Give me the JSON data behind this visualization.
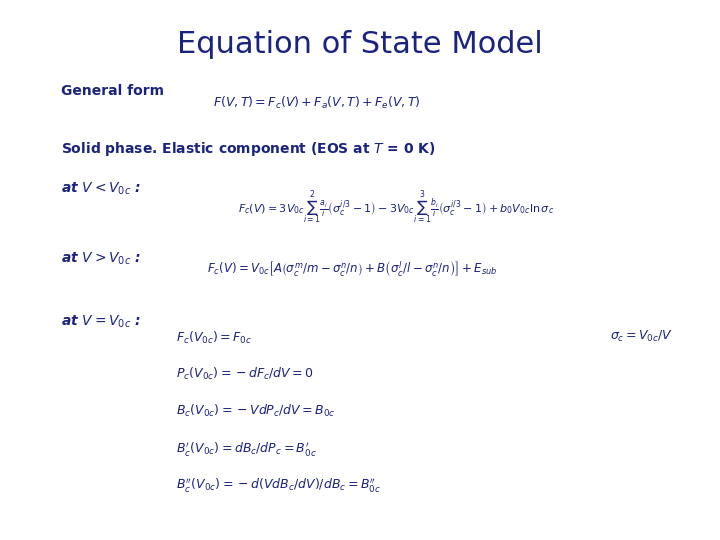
{
  "title": "Equation of State Model",
  "title_color": "#1a237e",
  "title_fontsize": 22,
  "background_color": "#ffffff",
  "text_color": "#1a237e",
  "math_color": "#1a237e",
  "general_form_label": "General form",
  "general_form_eq": "$F(V, T ) = F_c(V ) + F_a(V, T ) + F_e(V, T )$",
  "solid_phase_label": "Solid phase. Elastic component (EOS at $T$ = 0 K)",
  "case1_label": "at $V < V_{0c}$ :",
  "case1_eq": "$F_c(V) = 3V_{0c}\\sum_{i=1}^{2}\\frac{a_i}{i}\\left(\\sigma_c^{i/3}-1\\right) - 3V_{0c}\\sum_{i=1}^{3}\\frac{b_i}{i}\\left(\\sigma_c^{i/3}-1\\right) + b_0 V_{0c}\\ln\\sigma_c$",
  "case2_label": "at $V > V_{0c}$ :",
  "case2_eq": "$F_c(V) = V_{0c}\\left[A\\left(\\sigma_c^m/m - \\sigma_c^n/n\\right) + B\\left(\\sigma_c^l/l - \\sigma_c^n/n\\right)\\right] + E_{sub}$",
  "case3_label": "at $V = V_{0c}$ :",
  "case3_sigma": "$\\sigma_c = V_{0c}/V$",
  "case3_eq1": "$F_c(V_{0c}) = F_{0c}$",
  "case3_eq2": "$P_c(V_{0c}) = -dF_c/dV = 0$",
  "case3_eq3": "$B_c(V_{0c}) = -VdP_c/dV = B_{0c}$",
  "case3_eq4": "$B_c'(V_{0c}) = dB_c/dP_c = B_{0c}'$",
  "case3_eq5": "$B_c''(V_{0c}) = -d(VdB_c/dV)/dB_c = B_{0c}''$",
  "label_fontsize": 10,
  "eq_fontsize": 9,
  "solid_fontsize": 10
}
